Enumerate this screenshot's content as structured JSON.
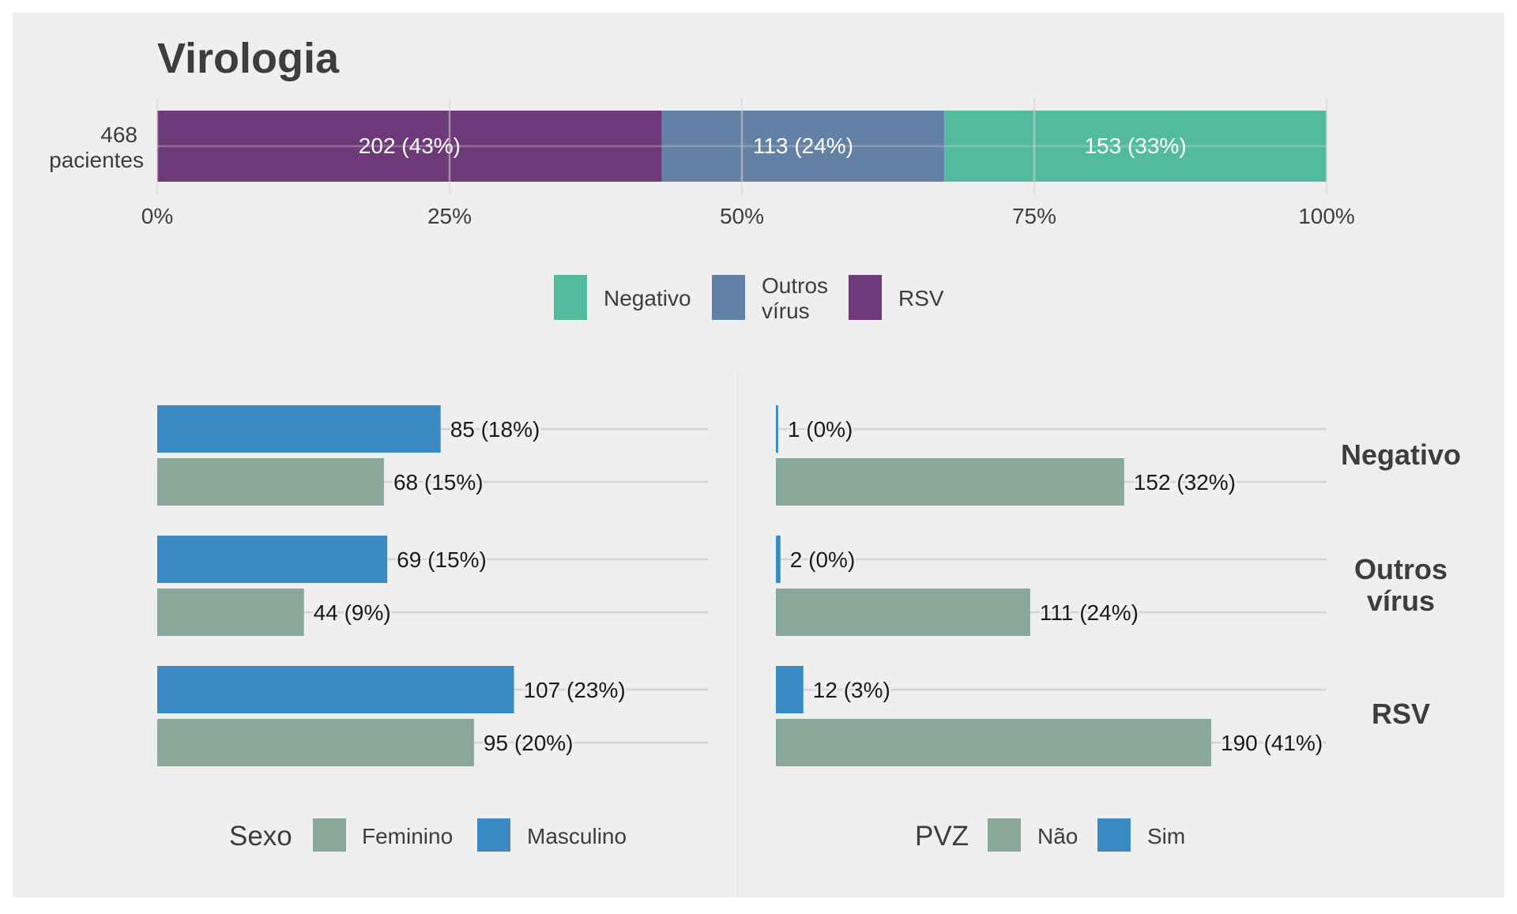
{
  "colors": {
    "background": "#efefef",
    "negativo": "#52bb9d",
    "outros": "#6281a5",
    "rsv": "#6e3978",
    "feminino": "#8aa99a",
    "masculino": "#3a8bc4",
    "nao": "#8aa99a",
    "sim": "#3a8bc4",
    "grid": "#d4d4d4",
    "text": "#3d3d3d"
  },
  "chart_data": [
    {
      "type": "bar",
      "orientation": "horizontal-stacked-100",
      "title": "Virologia",
      "category_label": [
        "468",
        "pacientes"
      ],
      "x_ticks": [
        "0%",
        "25%",
        "50%",
        "75%",
        "100%"
      ],
      "xlim": [
        0,
        100
      ],
      "segments": [
        {
          "name": "RSV",
          "value": 202,
          "label": "202 (43%)",
          "color_key": "rsv"
        },
        {
          "name": "Outros vírus",
          "value": 113,
          "label": "113 (24%)",
          "color_key": "outros"
        },
        {
          "name": "Negativo",
          "value": 153,
          "label": "153 (33%)",
          "color_key": "negativo"
        }
      ],
      "total": 468,
      "legend": [
        {
          "lines": [
            "Negativo"
          ],
          "color_key": "negativo"
        },
        {
          "lines": [
            "Outros",
            "vírus"
          ],
          "color_key": "outros"
        },
        {
          "lines": [
            "RSV"
          ],
          "color_key": "rsv"
        }
      ],
      "legend_position": "bottom"
    },
    {
      "type": "bar",
      "orientation": "horizontal-grouped",
      "legend_title": "Sexo",
      "bar_max": 120,
      "groups": [
        {
          "bars": [
            {
              "series": "Masculino",
              "value": 85,
              "label": "85 (18%)",
              "color_key": "masculino"
            },
            {
              "series": "Feminino",
              "value": 68,
              "label": "68 (15%)",
              "color_key": "feminino"
            }
          ]
        },
        {
          "bars": [
            {
              "series": "Masculino",
              "value": 69,
              "label": "69 (15%)",
              "color_key": "masculino"
            },
            {
              "series": "Feminino",
              "value": 44,
              "label": "44 (9%)",
              "color_key": "feminino"
            }
          ]
        },
        {
          "bars": [
            {
              "series": "Masculino",
              "value": 107,
              "label": "107 (23%)",
              "color_key": "masculino"
            },
            {
              "series": "Feminino",
              "value": 95,
              "label": "95 (20%)",
              "color_key": "feminino"
            }
          ]
        }
      ],
      "legend": [
        {
          "lines": [
            "Feminino"
          ],
          "color_key": "feminino"
        },
        {
          "lines": [
            "Masculino"
          ],
          "color_key": "masculino"
        }
      ],
      "legend_position": "bottom"
    },
    {
      "type": "bar",
      "orientation": "horizontal-grouped",
      "legend_title": "PVZ",
      "bar_max": 199,
      "groups": [
        {
          "strip": [
            "Negativo"
          ],
          "bars": [
            {
              "series": "Sim",
              "value": 1,
              "label": "1 (0%)",
              "color_key": "sim"
            },
            {
              "series": "Não",
              "value": 152,
              "label": "152 (32%)",
              "color_key": "nao"
            }
          ]
        },
        {
          "strip": [
            "Outros",
            "vírus"
          ],
          "bars": [
            {
              "series": "Sim",
              "value": 2,
              "label": "2 (0%)",
              "color_key": "sim"
            },
            {
              "series": "Não",
              "value": 111,
              "label": "111 (24%)",
              "color_key": "nao"
            }
          ]
        },
        {
          "strip": [
            "RSV"
          ],
          "bars": [
            {
              "series": "Sim",
              "value": 12,
              "label": "12 (3%)",
              "color_key": "sim"
            },
            {
              "series": "Não",
              "value": 190,
              "label": "190 (41%)",
              "color_key": "nao"
            }
          ]
        }
      ],
      "legend": [
        {
          "lines": [
            "Não"
          ],
          "color_key": "nao"
        },
        {
          "lines": [
            "Sim"
          ],
          "color_key": "sim"
        }
      ],
      "legend_position": "bottom"
    }
  ]
}
